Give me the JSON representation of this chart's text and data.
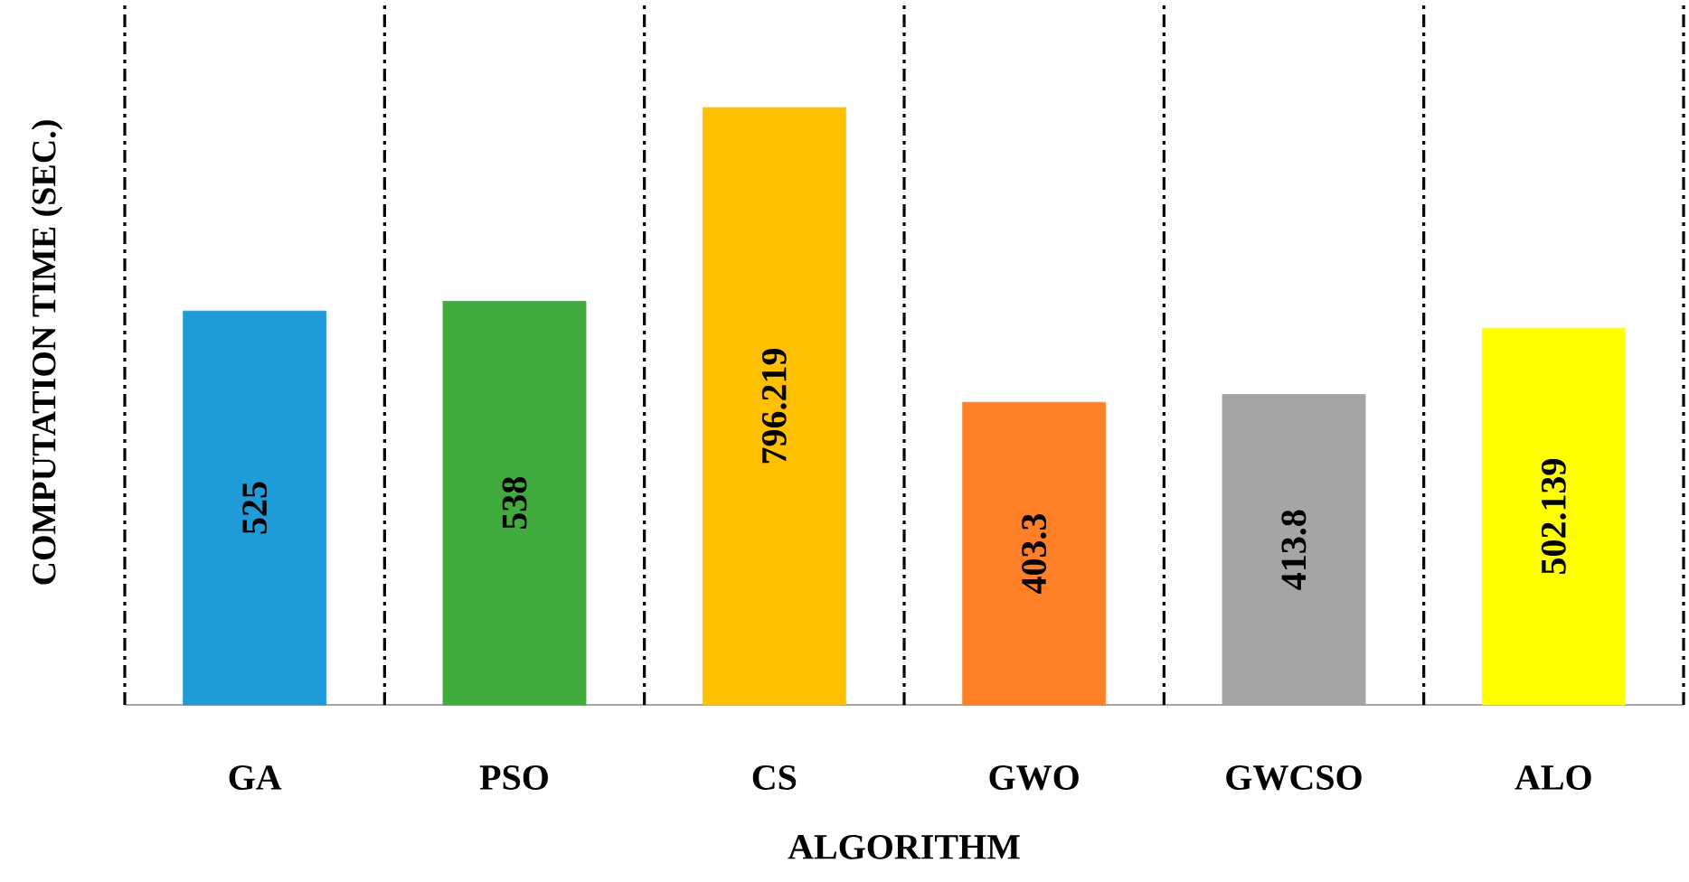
{
  "chart_data": {
    "type": "bar",
    "xlabel": "ALGORITHM",
    "ylabel": "COMPUTATION TIME (SEC.)",
    "categories": [
      "GA",
      "PSO",
      "CS",
      "GWO",
      "GWCSO",
      "ALO"
    ],
    "values": [
      525,
      538,
      796.219,
      403.3,
      413.8,
      502.139
    ],
    "colors": [
      "#1f9bd7",
      "#41ab3d",
      "#ffc000",
      "#ff7f27",
      "#a5a5a5",
      "#ffff00"
    ],
    "data_labels": true,
    "grid": "x"
  }
}
